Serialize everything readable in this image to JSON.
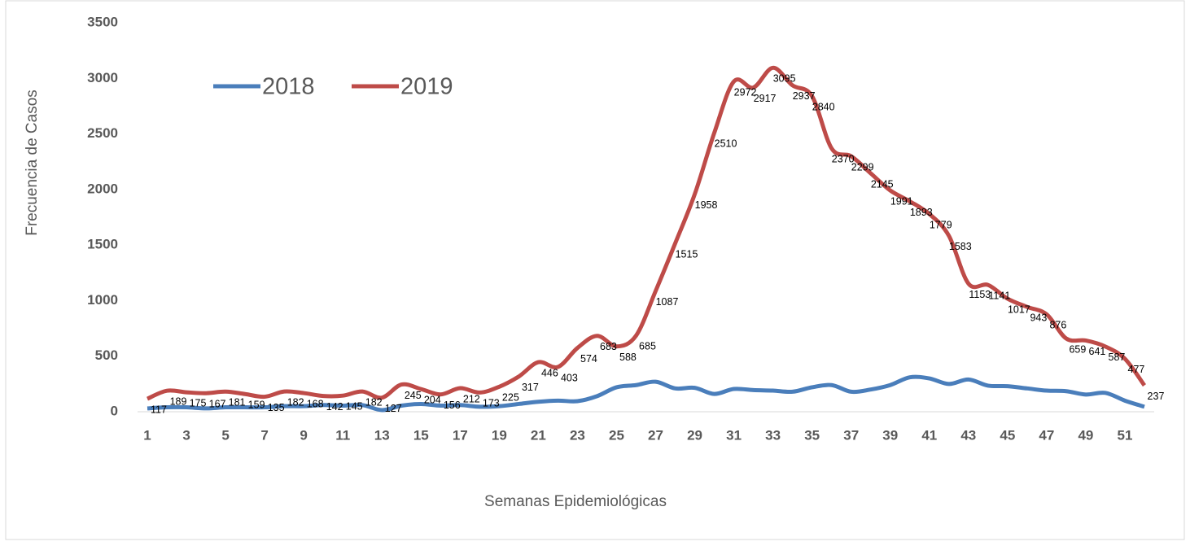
{
  "chart_data": {
    "type": "line",
    "x_label": "Semanas Epidemiológicas",
    "y_label": "Frecuencia de Casos",
    "categories": [
      1,
      null,
      3,
      null,
      5,
      null,
      7,
      null,
      9,
      null,
      11,
      null,
      13,
      null,
      15,
      null,
      17,
      null,
      19,
      null,
      21,
      null,
      23,
      null,
      25,
      null,
      27,
      null,
      29,
      null,
      31,
      null,
      33,
      null,
      35,
      null,
      37,
      null,
      39,
      null,
      41,
      null,
      43,
      null,
      45,
      null,
      47,
      null,
      49,
      null,
      51,
      null
    ],
    "series": [
      {
        "name": "2018",
        "color": "#4a7ebb",
        "values": [
          30,
          40,
          40,
          30,
          40,
          40,
          40,
          50,
          50,
          60,
          55,
          60,
          15,
          55,
          70,
          55,
          60,
          45,
          50,
          70,
          90,
          100,
          95,
          140,
          220,
          240,
          270,
          210,
          215,
          160,
          205,
          195,
          190,
          180,
          220,
          240,
          180,
          200,
          240,
          310,
          300,
          250,
          290,
          235,
          230,
          210,
          190,
          185,
          155,
          170,
          100,
          45
        ]
      },
      {
        "name": "2019",
        "color": "#be4b48",
        "show_labels": true,
        "values": [
          117,
          189,
          175,
          167,
          181,
          159,
          135,
          182,
          168,
          142,
          145,
          182,
          127,
          245,
          204,
          156,
          212,
          173,
          225,
          317,
          446,
          403,
          574,
          683,
          588,
          685,
          1087,
          1515,
          1958,
          2510,
          2972,
          2917,
          3095,
          2937,
          2840,
          2370,
          2299,
          2145,
          1991,
          1893,
          1779,
          1583,
          1153,
          1141,
          1017,
          943,
          876,
          659,
          641,
          587,
          477,
          237
        ]
      }
    ],
    "ylim": [
      0,
      3500
    ],
    "yticks": [
      0,
      500,
      1000,
      1500,
      2000,
      2500,
      3000,
      3500
    ],
    "grid": false,
    "legend": "top-left",
    "smooth": true
  }
}
